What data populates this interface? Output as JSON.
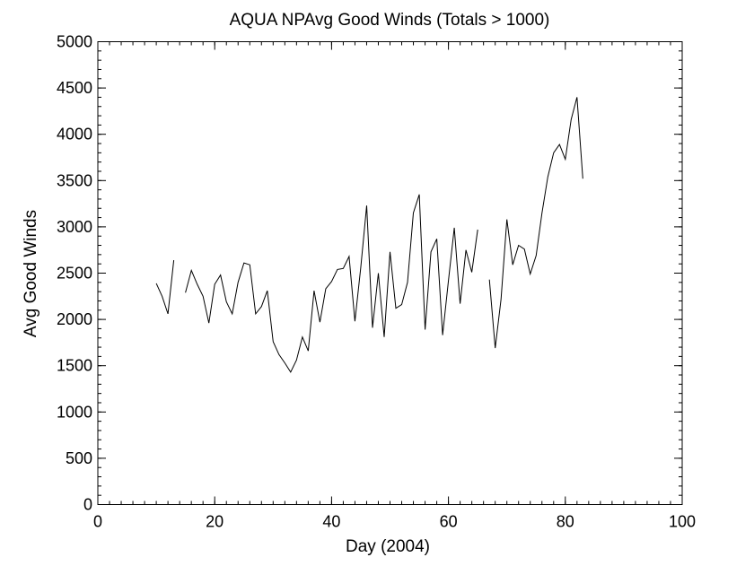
{
  "chart_data": {
    "type": "line",
    "title": "AQUA NPAvg Good Winds (Totals > 1000)",
    "xlabel": "Day (2004)",
    "ylabel": "Avg Good Winds",
    "xlim": [
      0,
      100
    ],
    "ylim": [
      0,
      5000
    ],
    "x_major_ticks": [
      0,
      20,
      40,
      60,
      80,
      100
    ],
    "x_tick_labels": [
      "0",
      "20",
      "40",
      "60",
      "80",
      "100"
    ],
    "x_minor_step": 2,
    "y_major_ticks": [
      0,
      500,
      1000,
      1500,
      2000,
      2500,
      3000,
      3500,
      4000,
      4500,
      5000
    ],
    "y_tick_labels": [
      "0",
      "500",
      "1000",
      "1500",
      "2000",
      "2500",
      "3000",
      "3500",
      "4000",
      "4500",
      "5000"
    ],
    "y_minor_step": 100,
    "grid": false,
    "series": [
      {
        "segments": [
          {
            "x": [
              10,
              11,
              12,
              13
            ],
            "y": [
              2390,
              2250,
              2060,
              2640
            ]
          },
          {
            "x": [
              15,
              16,
              17,
              18,
              19,
              20,
              21,
              22,
              23,
              24,
              25,
              26,
              27,
              28,
              29,
              30,
              31,
              32,
              33,
              34,
              35,
              36,
              37,
              38,
              39,
              40,
              41,
              42,
              43,
              44,
              45,
              46,
              47,
              48,
              49,
              50,
              51,
              52,
              53,
              54,
              55,
              56,
              57,
              58,
              59,
              60,
              61,
              62,
              63,
              64,
              65
            ],
            "y": [
              2290,
              2530,
              2380,
              2250,
              1960,
              2380,
              2480,
              2190,
              2060,
              2400,
              2610,
              2590,
              2060,
              2140,
              2310,
              1760,
              1620,
              1530,
              1430,
              1560,
              1810,
              1660,
              2310,
              1970,
              2330,
              2410,
              2540,
              2550,
              2680,
              1980,
              2560,
              3230,
              1910,
              2500,
              1810,
              2730,
              2120,
              2160,
              2400,
              3150,
              3350,
              1890,
              2730,
              2870,
              1830,
              2420,
              2990,
              2170,
              2750,
              2510,
              2970
            ]
          },
          {
            "x": [
              67,
              68,
              69,
              70,
              71,
              72,
              73,
              74,
              75,
              76,
              77,
              78,
              79,
              80,
              81,
              82,
              83
            ],
            "y": [
              2430,
              1690,
              2220,
              3080,
              2590,
              2800,
              2760,
              2490,
              2690,
              3150,
              3540,
              3800,
              3890,
              3730,
              4160,
              4400,
              3520
            ]
          }
        ]
      }
    ]
  }
}
